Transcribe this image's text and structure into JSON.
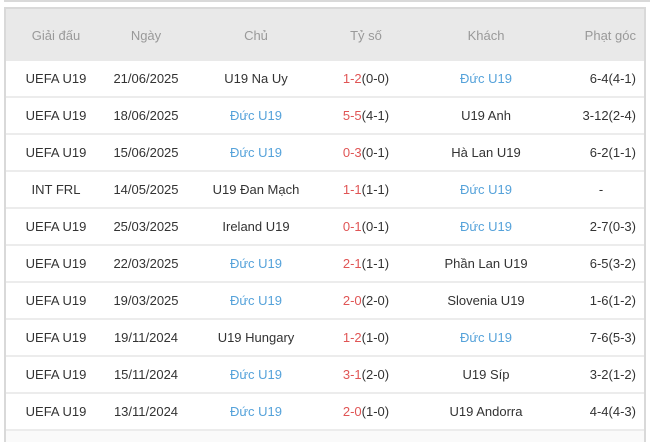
{
  "colors": {
    "frame_border": "#d9d9d9",
    "header_bg": "#e9e9e9",
    "header_text": "#999999",
    "body_text": "#333333",
    "team_highlight": "#55a2da",
    "score_accent": "#e05555",
    "row_separator": "#ececec",
    "footer_bg": "#fafafa"
  },
  "table": {
    "highlighted_team": "Đức U19",
    "columns": [
      {
        "key": "league",
        "label": "Giải đấu"
      },
      {
        "key": "date",
        "label": "Ngày"
      },
      {
        "key": "home",
        "label": "Chủ"
      },
      {
        "key": "score",
        "label": "Tỷ số"
      },
      {
        "key": "away",
        "label": "Khách"
      },
      {
        "key": "corners",
        "label": "Phạt góc"
      }
    ],
    "rows": [
      {
        "league": "UEFA U19",
        "date": "21/06/2025",
        "home": "U19 Na Uy",
        "home_highlight": false,
        "score_fulltime": "1-2",
        "score_halftime": "(0-0)",
        "away": "Đức U19",
        "away_highlight": true,
        "corners": "6-4(4-1)"
      },
      {
        "league": "UEFA U19",
        "date": "18/06/2025",
        "home": "Đức U19",
        "home_highlight": true,
        "score_fulltime": "5-5",
        "score_halftime": "(4-1)",
        "away": "U19 Anh",
        "away_highlight": false,
        "corners": "3-12(2-4)"
      },
      {
        "league": "UEFA U19",
        "date": "15/06/2025",
        "home": "Đức U19",
        "home_highlight": true,
        "score_fulltime": "0-3",
        "score_halftime": "(0-1)",
        "away": "Hà Lan U19",
        "away_highlight": false,
        "corners": "6-2(1-1)"
      },
      {
        "league": "INT FRL",
        "date": "14/05/2025",
        "home": "U19 Đan Mạch",
        "home_highlight": false,
        "score_fulltime": "1-1",
        "score_halftime": "(1-1)",
        "away": "Đức U19",
        "away_highlight": true,
        "corners": "-"
      },
      {
        "league": "UEFA U19",
        "date": "25/03/2025",
        "home": "Ireland U19",
        "home_highlight": false,
        "score_fulltime": "0-1",
        "score_halftime": "(0-1)",
        "away": "Đức U19",
        "away_highlight": true,
        "corners": "2-7(0-3)"
      },
      {
        "league": "UEFA U19",
        "date": "22/03/2025",
        "home": "Đức U19",
        "home_highlight": true,
        "score_fulltime": "2-1",
        "score_halftime": "(1-1)",
        "away": "Phần Lan U19",
        "away_highlight": false,
        "corners": "6-5(3-2)"
      },
      {
        "league": "UEFA U19",
        "date": "19/03/2025",
        "home": "Đức U19",
        "home_highlight": true,
        "score_fulltime": "2-0",
        "score_halftime": "(2-0)",
        "away": "Slovenia U19",
        "away_highlight": false,
        "corners": "1-6(1-2)"
      },
      {
        "league": "UEFA U19",
        "date": "19/11/2024",
        "home": "U19 Hungary",
        "home_highlight": false,
        "score_fulltime": "1-2",
        "score_halftime": "(1-0)",
        "away": "Đức U19",
        "away_highlight": true,
        "corners": "7-6(5-3)"
      },
      {
        "league": "UEFA U19",
        "date": "15/11/2024",
        "home": "Đức U19",
        "home_highlight": true,
        "score_fulltime": "3-1",
        "score_halftime": "(2-0)",
        "away": "U19 Síp",
        "away_highlight": false,
        "corners": "3-2(1-2)"
      },
      {
        "league": "UEFA U19",
        "date": "13/11/2024",
        "home": "Đức U19",
        "home_highlight": true,
        "score_fulltime": "2-0",
        "score_halftime": "(1-0)",
        "away": "U19 Andorra",
        "away_highlight": false,
        "corners": "4-4(4-3)"
      }
    ]
  }
}
